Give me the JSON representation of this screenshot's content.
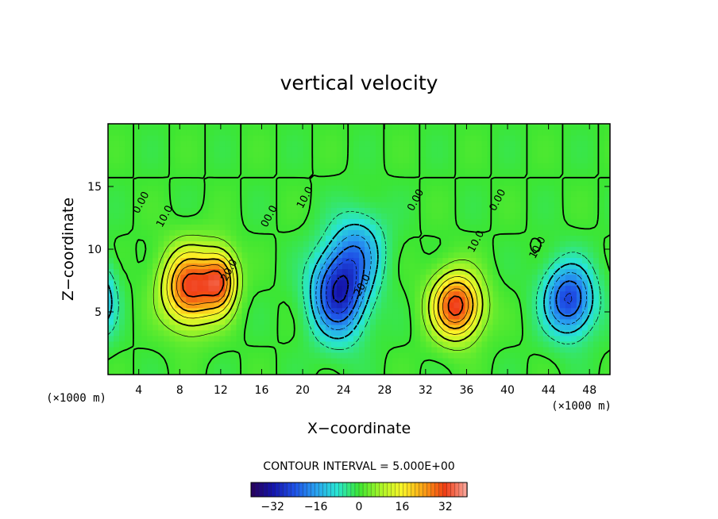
{
  "chart_data": {
    "type": "heatmap",
    "title": "vertical velocity",
    "xlabel": "X−coordinate",
    "ylabel": "Z−coordinate",
    "x_unit": "(×1000 m)",
    "z_unit": "(×1000 m)",
    "xlim": [
      1,
      50
    ],
    "zlim": [
      0,
      20
    ],
    "x_ticks": [
      4,
      8,
      12,
      16,
      20,
      24,
      28,
      32,
      36,
      40,
      44,
      48
    ],
    "z_ticks": [
      5,
      10,
      15
    ],
    "contour_interval_text": "CONTOUR INTERVAL = 5.000E+00",
    "contour_interval": 5,
    "colorbar": {
      "range": [
        -40,
        40
      ],
      "ticks": [
        -32,
        -16,
        0,
        16,
        32
      ],
      "tick_labels": [
        "−32",
        "−16",
        "0",
        "16",
        "32"
      ]
    },
    "field_features": [
      {
        "type": "updraft",
        "x": 9,
        "z": 7,
        "peak": 32,
        "sx": 2.6,
        "sz": 3.0
      },
      {
        "type": "updraft",
        "x": 12,
        "z": 7.5,
        "peak": 25,
        "sx": 1.6,
        "sz": 2.4
      },
      {
        "type": "updraft",
        "x": 35,
        "z": 5.5,
        "peak": 33,
        "sx": 2.4,
        "sz": 2.6
      },
      {
        "type": "downdraft",
        "x": 23.5,
        "z": 6.5,
        "peak": -30,
        "sx": 2.6,
        "sz": 3.4
      },
      {
        "type": "downdraft",
        "x": 25.5,
        "z": 10,
        "peak": -14,
        "sx": 2.5,
        "sz": 3.0
      },
      {
        "type": "downdraft",
        "x": 46,
        "z": 6,
        "peak": -26,
        "sx": 2.4,
        "sz": 2.8
      },
      {
        "type": "downdraft",
        "x": 0.5,
        "z": 6,
        "peak": -14,
        "sx": 1.4,
        "sz": 2.8
      }
    ],
    "contour_labels": [
      {
        "text": "0.00",
        "x": 4.5,
        "z": 13.6
      },
      {
        "text": "10.0",
        "x": 6.8,
        "z": 12.5
      },
      {
        "text": "20.0",
        "x": 13.1,
        "z": 8.2
      },
      {
        "text": "00.0",
        "x": 17.0,
        "z": 12.5
      },
      {
        "text": "10.0",
        "x": 20.5,
        "z": 14.0
      },
      {
        "text": "20.0",
        "x": 26.1,
        "z": 7.0
      },
      {
        "text": "0.00",
        "x": 31.3,
        "z": 13.8
      },
      {
        "text": "0.00",
        "x": 39.3,
        "z": 13.8
      },
      {
        "text": "10.0",
        "x": 37.2,
        "z": 10.5
      },
      {
        "text": "10.0",
        "x": 43.2,
        "z": 10.0
      }
    ]
  }
}
